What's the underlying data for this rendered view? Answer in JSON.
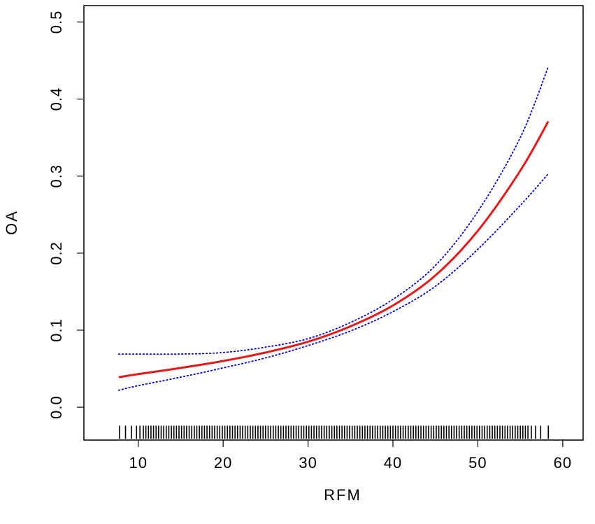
{
  "chart_data": {
    "type": "line",
    "xlabel": "RFM",
    "ylabel": "OA",
    "xlim": [
      3.6,
      62.4
    ],
    "ylim": [
      -0.0426,
      0.5213
    ],
    "xticks": [
      10,
      20,
      30,
      40,
      50,
      60
    ],
    "yticks": [
      0.0,
      0.1,
      0.2,
      0.3,
      0.4,
      0.5
    ],
    "xtick_labels": [
      "10",
      "20",
      "30",
      "40",
      "50",
      "60"
    ],
    "ytick_labels": [
      "0.0",
      "0.1",
      "0.2",
      "0.3",
      "0.4",
      "0.5"
    ],
    "grid": false,
    "series": [
      {
        "role": "estimate",
        "style": "solid",
        "color": "#e31a1c",
        "x": [
          7.7,
          10,
          15,
          20,
          25,
          30,
          35,
          40,
          45,
          50,
          55,
          58.3
        ],
        "y": [
          0.039,
          0.043,
          0.051,
          0.06,
          0.071,
          0.085,
          0.105,
          0.132,
          0.171,
          0.229,
          0.307,
          0.371
        ]
      },
      {
        "role": "upper-ci",
        "style": "dotted",
        "color": "#0000cd",
        "x": [
          7.7,
          10,
          15,
          20,
          25,
          30,
          35,
          40,
          45,
          50,
          55,
          58.3
        ],
        "y": [
          0.069,
          0.069,
          0.069,
          0.071,
          0.078,
          0.089,
          0.11,
          0.14,
          0.184,
          0.254,
          0.35,
          0.442
        ]
      },
      {
        "role": "lower-ci",
        "style": "dotted",
        "color": "#0000cd",
        "x": [
          7.7,
          10,
          15,
          20,
          25,
          30,
          35,
          40,
          45,
          50,
          55,
          58.3
        ],
        "y": [
          0.022,
          0.028,
          0.039,
          0.051,
          0.064,
          0.08,
          0.099,
          0.124,
          0.157,
          0.205,
          0.262,
          0.303
        ]
      }
    ],
    "rug": {
      "y_range": [
        -0.024,
        -0.041
      ],
      "x_values": [
        7.8,
        8.5,
        9.2,
        9.8,
        10.2,
        10.6,
        10.9,
        11.2,
        11.5,
        11.8,
        12.1,
        12.4,
        12.7,
        13.0,
        13.3,
        13.6,
        13.9,
        14.2,
        14.5,
        14.8,
        15.1,
        15.4,
        15.7,
        16.0,
        16.3,
        16.6,
        16.9,
        17.2,
        17.5,
        17.8,
        18.1,
        18.4,
        18.7,
        19.0,
        19.3,
        19.6,
        19.9,
        20.2,
        20.5,
        20.8,
        21.1,
        21.4,
        21.7,
        22.0,
        22.3,
        22.6,
        22.9,
        23.2,
        23.5,
        23.8,
        24.1,
        24.4,
        24.7,
        25.0,
        25.3,
        25.6,
        25.9,
        26.2,
        26.5,
        26.8,
        27.1,
        27.4,
        27.7,
        28.0,
        28.3,
        28.6,
        28.9,
        29.2,
        29.5,
        29.8,
        30.1,
        30.4,
        30.7,
        31.0,
        31.3,
        31.6,
        31.9,
        32.2,
        32.5,
        32.8,
        33.1,
        33.4,
        33.7,
        34.0,
        34.3,
        34.6,
        34.9,
        35.2,
        35.5,
        35.8,
        36.1,
        36.4,
        36.7,
        37.0,
        37.3,
        37.6,
        37.9,
        38.2,
        38.5,
        38.8,
        39.1,
        39.4,
        39.7,
        40.0,
        40.3,
        40.6,
        40.9,
        41.2,
        41.5,
        41.8,
        42.1,
        42.4,
        42.7,
        43.0,
        43.3,
        43.6,
        43.9,
        44.2,
        44.5,
        44.8,
        45.1,
        45.4,
        45.7,
        46.0,
        46.3,
        46.6,
        46.9,
        47.2,
        47.5,
        47.8,
        48.1,
        48.4,
        48.7,
        49.0,
        49.3,
        49.6,
        49.9,
        50.2,
        50.5,
        50.8,
        51.1,
        51.4,
        51.7,
        52.0,
        52.3,
        52.6,
        52.9,
        53.2,
        53.5,
        53.8,
        54.1,
        54.4,
        54.7,
        55.0,
        55.3,
        55.6,
        55.9,
        56.3,
        56.8,
        57.4,
        58.3
      ]
    }
  }
}
